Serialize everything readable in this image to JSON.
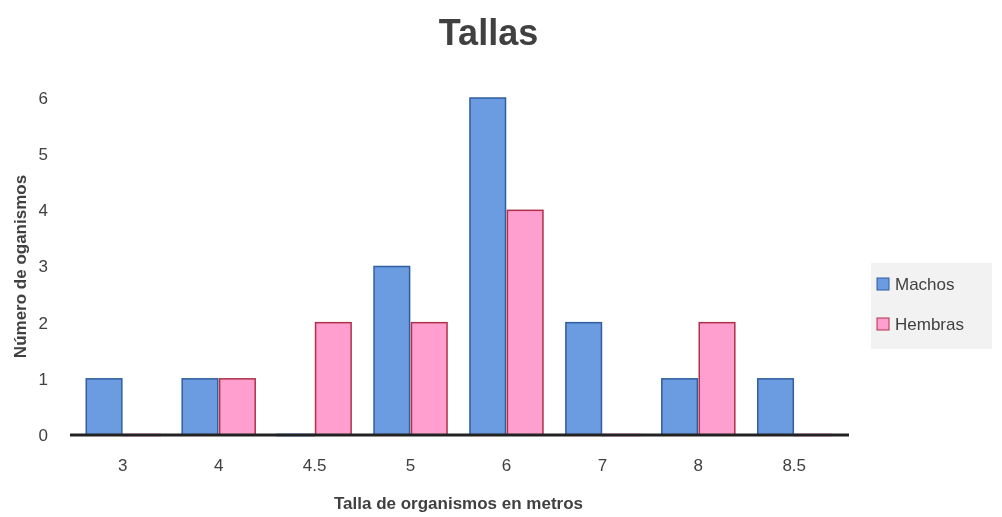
{
  "chart_data": {
    "type": "bar",
    "title": "Tallas",
    "xlabel": "Talla de organismos en metros",
    "ylabel": "Número de oganismos",
    "categories": [
      "3",
      "4",
      "4.5",
      "5",
      "6",
      "7",
      "8",
      "8.5"
    ],
    "series": [
      {
        "name": "Machos",
        "color": "#6b9be0",
        "values": [
          1,
          1,
          0,
          3,
          6,
          2,
          1,
          1
        ]
      },
      {
        "name": "Hembras",
        "color": "#ff9fd0",
        "values": [
          0,
          1,
          2,
          2,
          4,
          0,
          2,
          0
        ]
      }
    ],
    "ylim": [
      0,
      6
    ],
    "yticks": [
      0,
      1,
      2,
      3,
      4,
      5,
      6
    ],
    "legend": "right"
  }
}
